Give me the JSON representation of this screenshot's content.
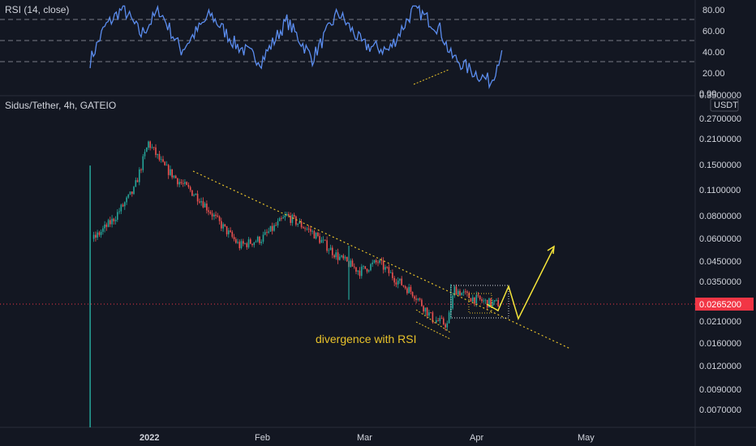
{
  "rsi_panel": {
    "title": "RSI (14, close)",
    "ticks": [
      "80.00",
      "60.00",
      "40.00",
      "20.00",
      "0.00"
    ],
    "levels": [
      70,
      50,
      30
    ],
    "line_color": "#5b8def"
  },
  "price_panel": {
    "title": "Sidus/Tether, 4h, GATEIO",
    "currency": "USDT",
    "ticks": [
      "0.3500000",
      "0.2700000",
      "0.2100000",
      "0.1500000",
      "0.1100000",
      "0.0800000",
      "0.0600000",
      "0.0450000",
      "0.0350000",
      "0.0265200",
      "0.0210000",
      "0.0160000",
      "0.0120000",
      "0.0090000",
      "0.0070000"
    ],
    "last_price": "0.0265200",
    "annotation": "divergence with RSI",
    "colors": {
      "up": "#26a69a",
      "down": "#ef5350",
      "trendline": "#e8c22a",
      "projection": "#f5e43a",
      "last_price_bg": "#f23645"
    }
  },
  "x_axis": {
    "labels": [
      "2022",
      "Feb",
      "Mar",
      "Apr",
      "May"
    ]
  },
  "chart_data": [
    {
      "type": "line",
      "title": "RSI (14, close)",
      "ylim": [
        0,
        80
      ],
      "x": [
        "2021-12-16",
        "2021-12-20",
        "2021-12-25",
        "2021-12-30",
        "2022-01-04",
        "2022-01-10",
        "2022-01-18",
        "2022-01-25",
        "2022-02-01",
        "2022-02-08",
        "2022-02-15",
        "2022-02-22",
        "2022-03-01",
        "2022-03-08",
        "2022-03-15",
        "2022-03-22",
        "2022-03-25",
        "2022-03-30",
        "2022-04-05",
        "2022-04-08"
      ],
      "series": [
        {
          "name": "",
          "values": [
            30,
            62,
            80,
            55,
            78,
            40,
            74,
            45,
            30,
            68,
            32,
            76,
            45,
            40,
            80,
            60,
            35,
            22,
            10,
            40
          ]
        }
      ]
    },
    {
      "type": "line",
      "title": "Sidus/Tether, 4h, GATEIO",
      "ylabel": "USDT",
      "x": [
        "2021-12-16",
        "2021-12-17",
        "2021-12-22",
        "2021-12-28",
        "2022-01-01",
        "2022-01-05",
        "2022-01-10",
        "2022-01-15",
        "2022-01-20",
        "2022-01-26",
        "2022-02-01",
        "2022-02-08",
        "2022-02-15",
        "2022-02-22",
        "2022-02-28",
        "2022-03-05",
        "2022-03-10",
        "2022-03-15",
        "2022-03-20",
        "2022-03-24",
        "2022-03-26",
        "2022-03-30",
        "2022-04-04",
        "2022-04-08"
      ],
      "series": [
        {
          "name": "",
          "values": [
            0.13,
            0.06,
            0.075,
            0.11,
            0.2,
            0.15,
            0.12,
            0.1,
            0.075,
            0.055,
            0.06,
            0.08,
            0.065,
            0.048,
            0.04,
            0.045,
            0.036,
            0.03,
            0.022,
            0.0205,
            0.032,
            0.029,
            0.027,
            0.02652
          ]
        }
      ]
    }
  ]
}
